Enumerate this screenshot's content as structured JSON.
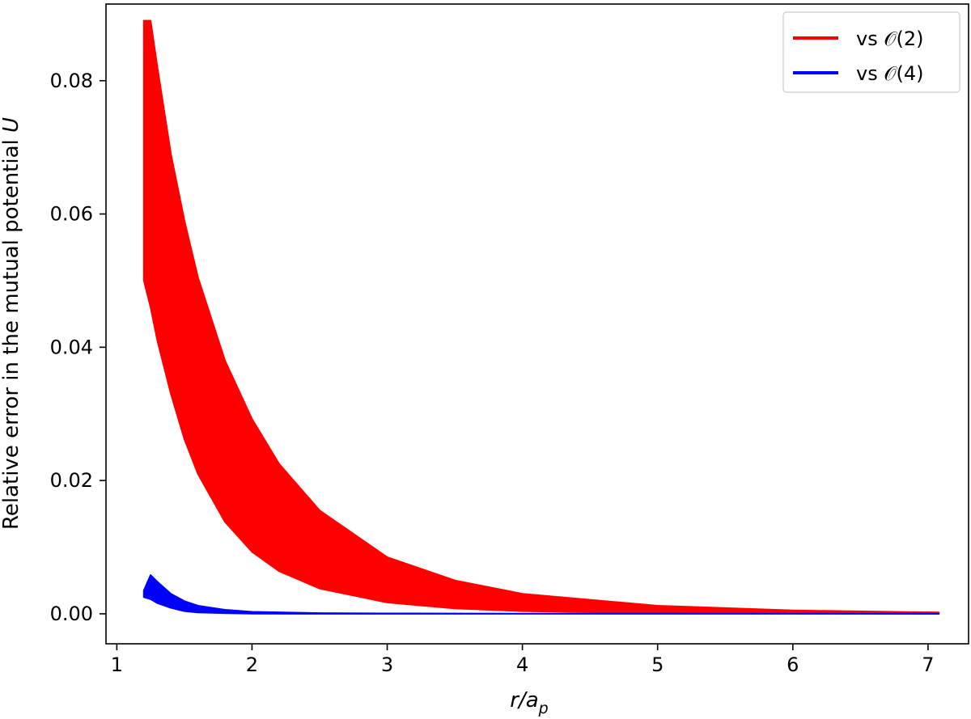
{
  "chart_data": {
    "type": "area",
    "xlabel_main": "r/a",
    "xlabel_sub": "p",
    "ylabel_main": "Relative error in the mutual potential ",
    "ylabel_var": "U",
    "xlim": [
      0.92,
      7.3
    ],
    "ylim": [
      -0.0045,
      0.0915
    ],
    "xticks": [
      1,
      2,
      3,
      4,
      5,
      6,
      7
    ],
    "xtick_labels": [
      "1",
      "2",
      "3",
      "4",
      "5",
      "6",
      "7"
    ],
    "yticks": [
      0,
      0.02,
      0.04,
      0.06,
      0.08
    ],
    "ytick_labels": [
      "0.00",
      "0.02",
      "0.04",
      "0.06",
      "0.08"
    ],
    "grid": false,
    "legend_position": "top-right",
    "series": [
      {
        "name": "vs 𝒪(2)",
        "color": "#ff0000",
        "x": [
          1.2,
          1.25,
          1.3,
          1.4,
          1.5,
          1.6,
          1.8,
          2.0,
          2.2,
          2.5,
          3.0,
          3.5,
          4.0,
          5.0,
          6.0,
          7.08
        ],
        "upper": [
          0.089,
          0.089,
          0.082,
          0.069,
          0.059,
          0.0505,
          0.038,
          0.0292,
          0.0225,
          0.0155,
          0.0085,
          0.005,
          0.003,
          0.0012,
          0.0005,
          0.0002
        ],
        "lower": [
          0.05,
          0.046,
          0.041,
          0.033,
          0.0262,
          0.021,
          0.0138,
          0.0093,
          0.0064,
          0.0038,
          0.0017,
          0.0008,
          0.0004,
          0.0001,
          5e-05,
          0.0
        ]
      },
      {
        "name": "vs 𝒪(4)",
        "color": "#0000ff",
        "x": [
          1.2,
          1.25,
          1.3,
          1.4,
          1.5,
          1.6,
          1.8,
          2.0,
          2.5,
          3.0,
          4.0,
          5.0,
          7.08
        ],
        "upper": [
          0.0035,
          0.0058,
          0.0048,
          0.003,
          0.0019,
          0.0012,
          0.0006,
          0.0003,
          0.0001,
          5e-05,
          2e-05,
          1e-05,
          0.0
        ],
        "lower": [
          0.0025,
          0.0022,
          0.0016,
          0.0009,
          0.0004,
          0.0002,
          0.0001,
          3e-05,
          0.0,
          0.0,
          0.0,
          0.0,
          0.0
        ]
      }
    ]
  }
}
